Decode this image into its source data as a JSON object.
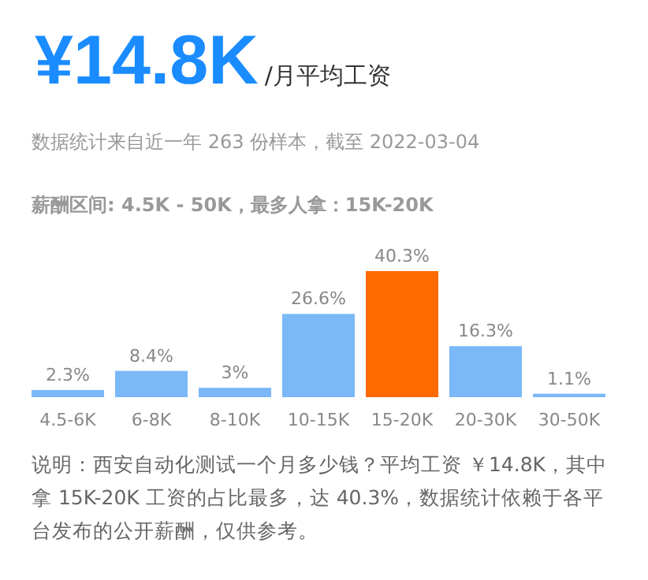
{
  "chart_data": {
    "type": "bar",
    "title": "¥14.8K",
    "subtitle": "/月平均工资",
    "annotations": [
      "数据统计来自近一年 263 份样本，截至 2022-03-04",
      "薪酬区间: 4.5K - 50K，最多人拿：15K-20K",
      "说明：西安自动化测试一个月多少钱？平均工资 ￥14.8K，其中拿 15K-20K 工资的占比最多，达 40.3%，数据统计依赖于各平台发布的公开薪酬，仅供参考。"
    ],
    "categories": [
      "4.5-6K",
      "6-8K",
      "8-10K",
      "10-15K",
      "15-20K",
      "20-30K",
      "30-50K"
    ],
    "values": [
      2.3,
      8.4,
      3,
      26.6,
      40.3,
      16.3,
      1.1
    ],
    "value_labels": [
      "2.3%",
      "8.4%",
      "3%",
      "26.6%",
      "40.3%",
      "16.3%",
      "1.1%"
    ],
    "colors": [
      "#7ab8f8",
      "#7ab8f8",
      "#7ab8f8",
      "#7ab8f8",
      "#ff6a00",
      "#7ab8f8",
      "#7ab8f8"
    ]
  }
}
